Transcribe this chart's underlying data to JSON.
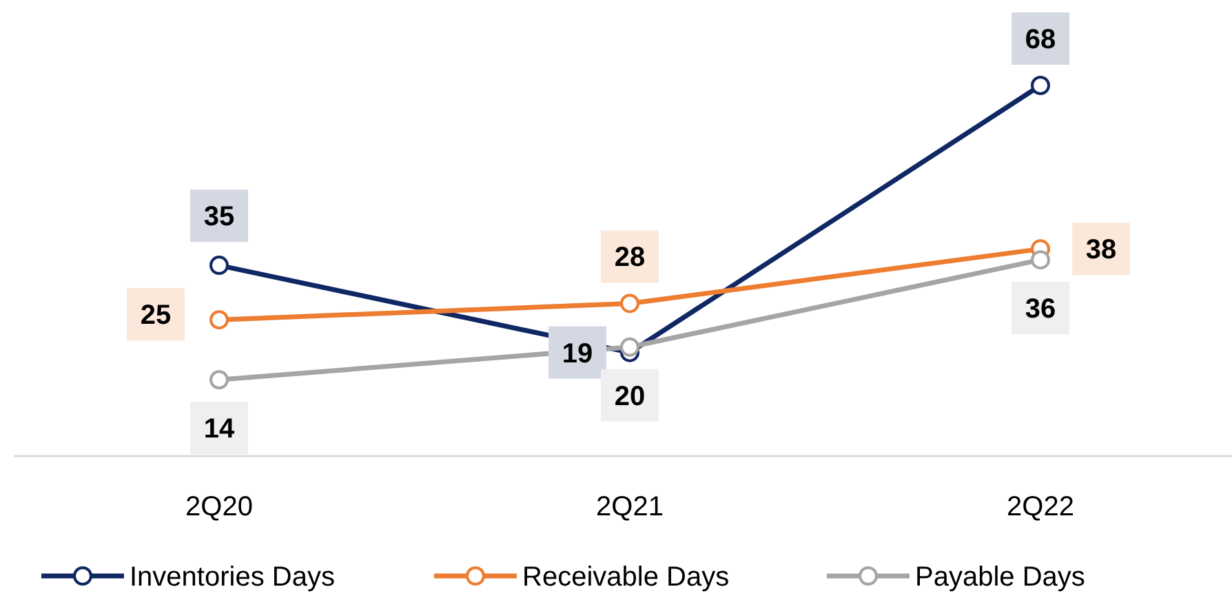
{
  "chart_data": {
    "type": "line",
    "categories": [
      "2Q20",
      "2Q21",
      "2Q22"
    ],
    "series": [
      {
        "name": "Inventories Days",
        "color": "#0f2763",
        "values": [
          35,
          19,
          68
        ]
      },
      {
        "name": "Receivable Days",
        "color": "#ed7d31",
        "values": [
          25,
          28,
          38
        ]
      },
      {
        "name": "Payable Days",
        "color": "#a5a5a5",
        "values": [
          14,
          20,
          36
        ]
      }
    ],
    "data_labels": true,
    "marker": "circle",
    "line_style": "solid",
    "legend": "bottom"
  }
}
